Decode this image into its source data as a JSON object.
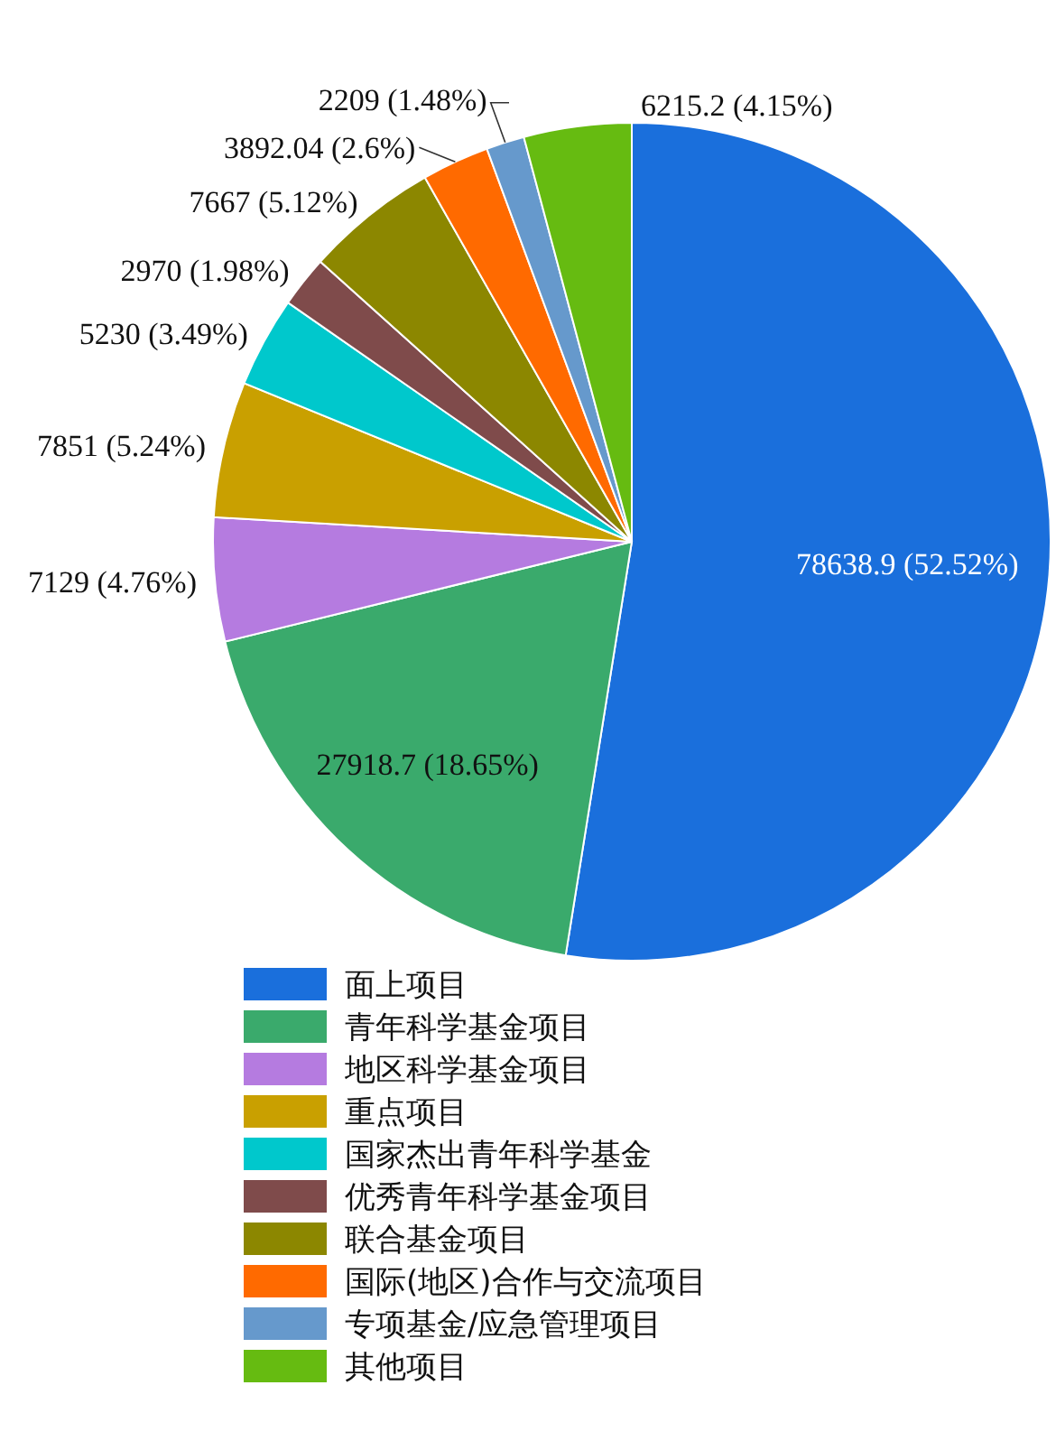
{
  "chart_data": {
    "type": "pie",
    "categories": [
      "面上项目",
      "青年科学基金项目",
      "地区科学基金项目",
      "重点项目",
      "国家杰出青年科学基金",
      "优秀青年科学基金项目",
      "联合基金项目",
      "国际(地区)合作与交流项目",
      "专项基金/应急管理项目",
      "其他项目"
    ],
    "values": [
      78638.9,
      27918.7,
      7129,
      7851,
      5230,
      2970,
      7667,
      3892.04,
      2209,
      6215.2
    ],
    "value_labels": [
      "78638.9 (52.52%)",
      "27918.7 (18.65%)",
      "7129 (4.76%)",
      "7851 (5.24%)",
      "5230 (3.49%)",
      "2970 (1.98%)",
      "7667 (5.12%)",
      "3892.04 (2.6%)",
      "2209 (1.48%)",
      "6215.2 (4.15%)"
    ],
    "colors": [
      "#1a6fdc",
      "#3aaa6c",
      "#b57be0",
      "#c9a000",
      "#00c8cc",
      "#7f4b4b",
      "#8c8700",
      "#ff6a00",
      "#6699cc",
      "#66bb11"
    ],
    "legend": "bottom"
  }
}
